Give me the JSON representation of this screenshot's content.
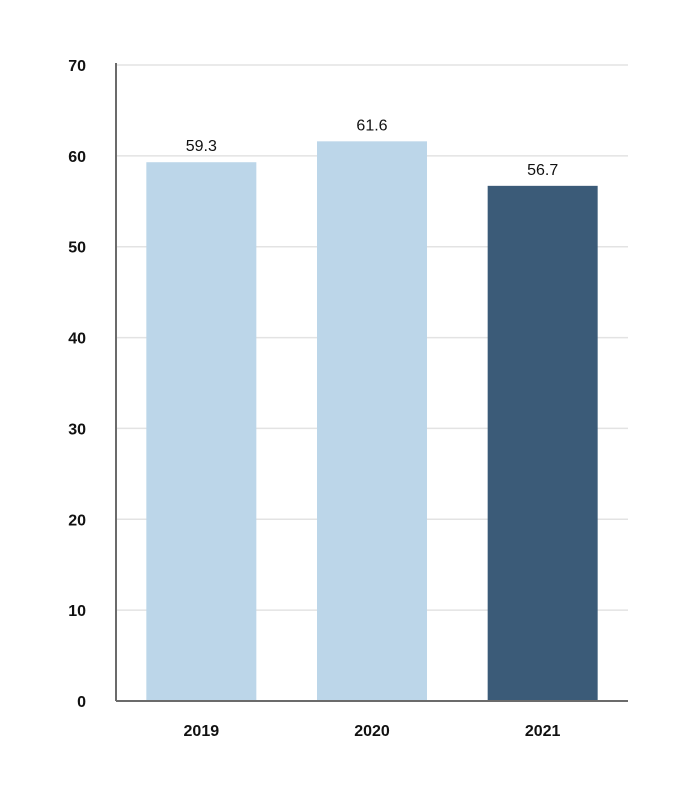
{
  "chart_data": {
    "type": "bar",
    "title": "",
    "xlabel": "",
    "ylabel": "",
    "categories": [
      "2019",
      "2020",
      "2021"
    ],
    "values": [
      59.3,
      61.6,
      56.7
    ],
    "value_labels": [
      "59.3",
      "61.6",
      "56.7"
    ],
    "bar_colors": [
      "#bcd6e9",
      "#bcd6e9",
      "#3b5b78"
    ],
    "ylim": [
      0,
      70
    ],
    "yticks": [
      0,
      10,
      20,
      30,
      40,
      50,
      60,
      70
    ],
    "ytick_labels": [
      "0",
      "10",
      "20",
      "30",
      "40",
      "50",
      "60",
      "70"
    ],
    "grid": true,
    "legend": "none"
  }
}
